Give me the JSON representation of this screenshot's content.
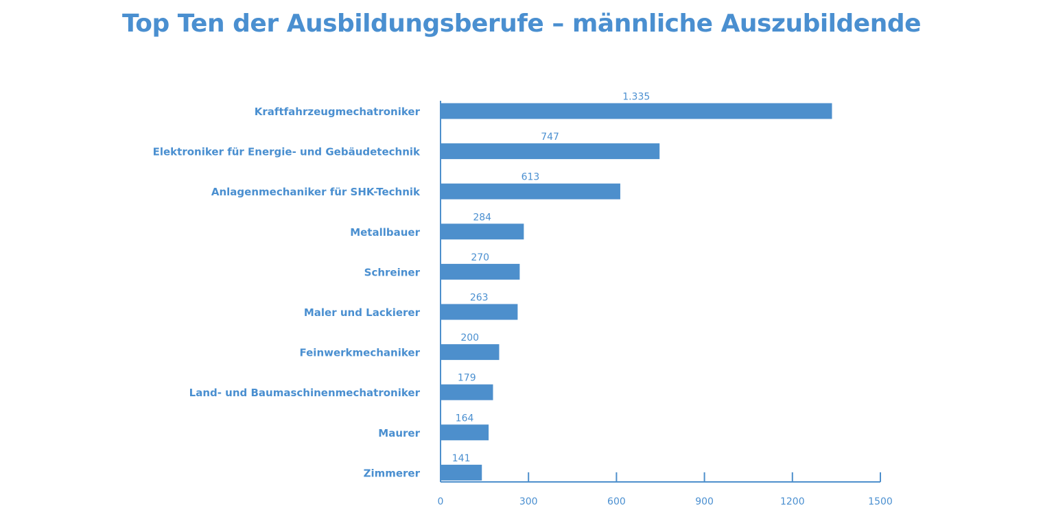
{
  "chart_data": {
    "type": "bar",
    "orientation": "horizontal",
    "title": "Top Ten der Ausbildungsberufe  –  männliche Auszubildende",
    "categories": [
      "Kraftfahrzeugmechatroniker",
      "Elektroniker für Energie- und Gebäudetechnik",
      "Anlagenmechaniker für SHK-Technik",
      "Metallbauer",
      "Schreiner",
      "Maler und Lackierer",
      "Feinwerkmechaniker",
      "Land- und Baumaschinenmechatroniker",
      "Maurer",
      "Zimmerer"
    ],
    "values": [
      1335,
      747,
      613,
      284,
      270,
      263,
      200,
      179,
      164,
      141
    ],
    "value_labels": [
      "1.335",
      "747",
      "613",
      "284",
      "270",
      "263",
      "200",
      "179",
      "164",
      "141"
    ],
    "xlim": [
      0,
      1500
    ],
    "xticks": [
      0,
      300,
      600,
      900,
      1200,
      1500
    ],
    "xtick_labels": [
      "0",
      "300",
      "600",
      "900",
      "1200",
      "1500"
    ],
    "grid": false,
    "bar_color": "#4d8fcc",
    "text_color": "#4a8fd0"
  }
}
